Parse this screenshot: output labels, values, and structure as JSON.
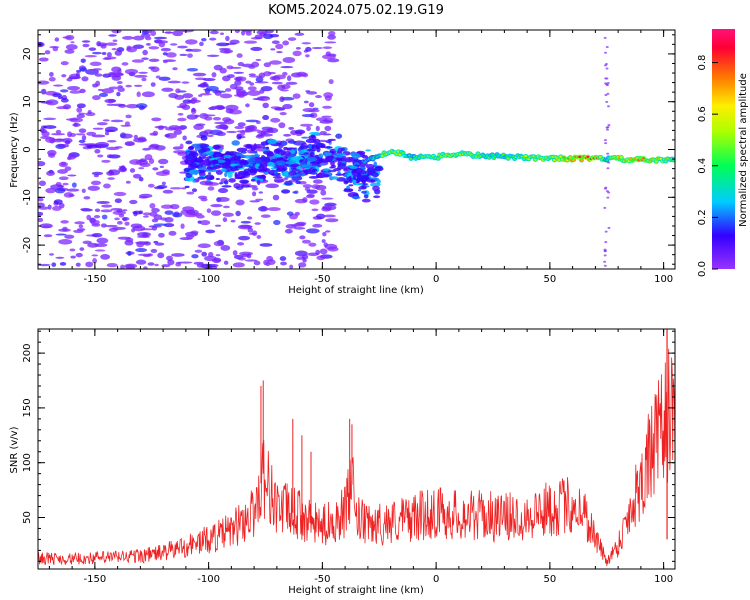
{
  "title": "KOM5.2024.075.02.19.G19",
  "chart_data": [
    {
      "type": "heatmap",
      "xlabel": "Height of straight line (km)",
      "ylabel": "Frequency (Hz)",
      "xlim": [
        -175,
        105
      ],
      "ylim": [
        -25,
        25
      ],
      "xticks": [
        -150,
        -100,
        -50,
        0,
        50,
        100
      ],
      "yticks": [
        -20,
        -10,
        0,
        10,
        20
      ],
      "colorbar": {
        "label": "Normalized spectral amplitude",
        "range": [
          0.0,
          0.93
        ],
        "ticks": [
          0.0,
          0.2,
          0.4,
          0.6,
          0.8
        ],
        "tick_labels": [
          "0.0",
          "0.2",
          "0.4",
          "0.6",
          "0.8"
        ],
        "colormap": "rainbow"
      },
      "ridge_track": {
        "x": [
          -30,
          -25,
          -20,
          -15,
          -10,
          -5,
          0,
          5,
          10,
          20,
          30,
          40,
          50,
          60,
          70,
          75,
          80,
          90,
          100,
          105
        ],
        "y": [
          -2.5,
          -1.2,
          -0.4,
          -0.8,
          -1.8,
          -1.3,
          -1.6,
          -1.2,
          -0.9,
          -1.3,
          -1.5,
          -1.7,
          -1.8,
          -1.9,
          -1.9,
          -1.9,
          -2.0,
          -2.2,
          -2.3,
          -2.0
        ],
        "amplitude": [
          0.3,
          0.45,
          0.6,
          0.5,
          0.4,
          0.5,
          0.55,
          0.6,
          0.55,
          0.5,
          0.45,
          0.55,
          0.6,
          0.8,
          0.85,
          0.4,
          0.7,
          0.75,
          0.6,
          0.5
        ]
      }
    },
    {
      "type": "line",
      "xlabel": "Height of straight line (km)",
      "ylabel": "SNR (v/v)",
      "xlim": [
        -175,
        105
      ],
      "ylim": [
        3,
        222
      ],
      "xticks": [
        -150,
        -100,
        -50,
        0,
        50,
        100
      ],
      "yticks": [
        50,
        100,
        150,
        200
      ],
      "line_color": "#ee2222",
      "series": [
        {
          "name": "",
          "x": [
            -175,
            -160,
            -150,
            -140,
            -130,
            -120,
            -110,
            -100,
            -90,
            -80,
            -76,
            -70,
            -60,
            -55,
            -50,
            -45,
            -40,
            -37,
            -35,
            -30,
            -20,
            -10,
            0,
            10,
            20,
            30,
            40,
            50,
            60,
            65,
            70,
            75,
            80,
            85,
            90,
            95,
            100,
            102,
            105
          ],
          "y": [
            13,
            12,
            13,
            14,
            15,
            18,
            24,
            30,
            38,
            55,
            90,
            60,
            52,
            45,
            42,
            48,
            55,
            80,
            50,
            42,
            46,
            50,
            55,
            52,
            52,
            50,
            52,
            58,
            62,
            55,
            32,
            10,
            25,
            55,
            85,
            110,
            130,
            150,
            125
          ],
          "spikes_x": [
            -77,
            -76,
            -63,
            -59,
            -55,
            -38,
            -37
          ],
          "spikes_y": [
            170,
            175,
            140,
            125,
            110,
            140,
            135
          ]
        }
      ]
    }
  ]
}
